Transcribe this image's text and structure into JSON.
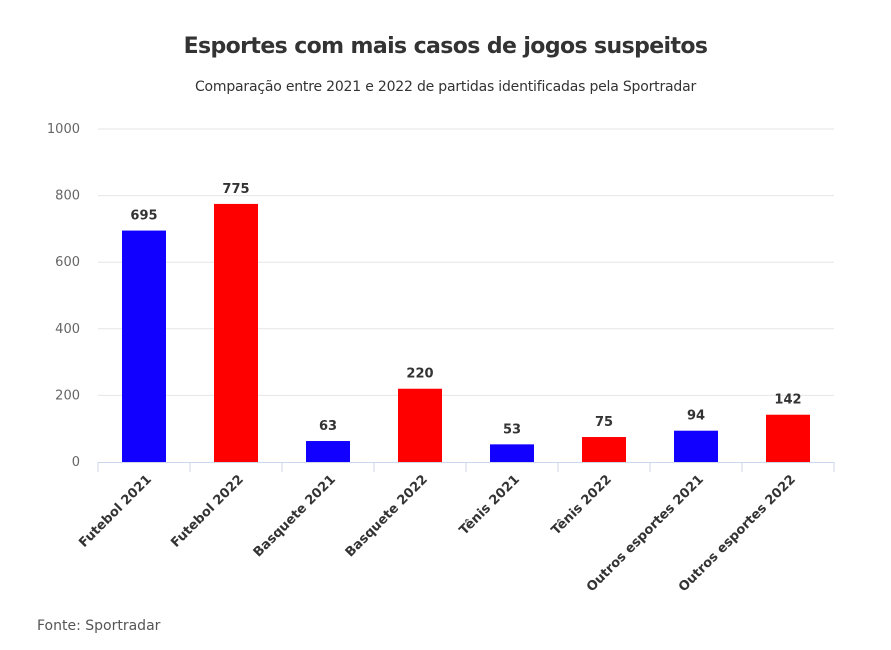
{
  "chart_data": {
    "type": "bar",
    "title": "Esportes com mais casos de jogos suspeitos",
    "subtitle": "Comparação entre 2021 e 2022 de partidas identificadas pela Sportradar",
    "xlabel": "",
    "ylabel": "",
    "ylim": [
      0,
      1000
    ],
    "yticks": [
      0,
      200,
      400,
      600,
      800,
      1000
    ],
    "grid": true,
    "categories": [
      "Futebol 2021",
      "Futebol 2022",
      "Basquete 2021",
      "Basquete 2022",
      "Tênis 2021",
      "Tênis 2022",
      "Outros esportes 2021",
      "Outros esportes 2022"
    ],
    "values": [
      695,
      775,
      63,
      220,
      53,
      75,
      94,
      142
    ],
    "colors": [
      "#1100ff",
      "#ff0000",
      "#1100ff",
      "#ff0000",
      "#1100ff",
      "#ff0000",
      "#1100ff",
      "#ff0000"
    ],
    "data_labels": true
  },
  "source": "Fonte: Sportradar"
}
